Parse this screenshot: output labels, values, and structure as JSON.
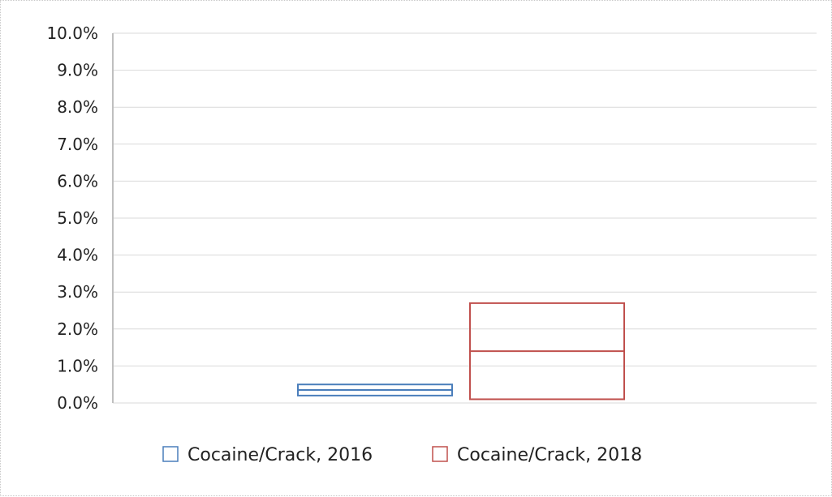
{
  "chart_data": {
    "type": "box",
    "y_tick_labels": [
      "0.0%",
      "1.0%",
      "2.0%",
      "3.0%",
      "4.0%",
      "5.0%",
      "6.0%",
      "7.0%",
      "8.0%",
      "9.0%",
      "10.0%"
    ],
    "ylim": [
      0,
      10
    ],
    "y_unit": "%",
    "grid": true,
    "legend_position": "bottom",
    "series": [
      {
        "name": "Cocaine/Crack, 2016",
        "color": "#4a7ebb",
        "lower": 0.2,
        "median": 0.35,
        "upper": 0.5
      },
      {
        "name": "Cocaine/Crack, 2018",
        "color": "#c0504d",
        "lower": 0.1,
        "median": 1.4,
        "upper": 2.7
      }
    ]
  }
}
